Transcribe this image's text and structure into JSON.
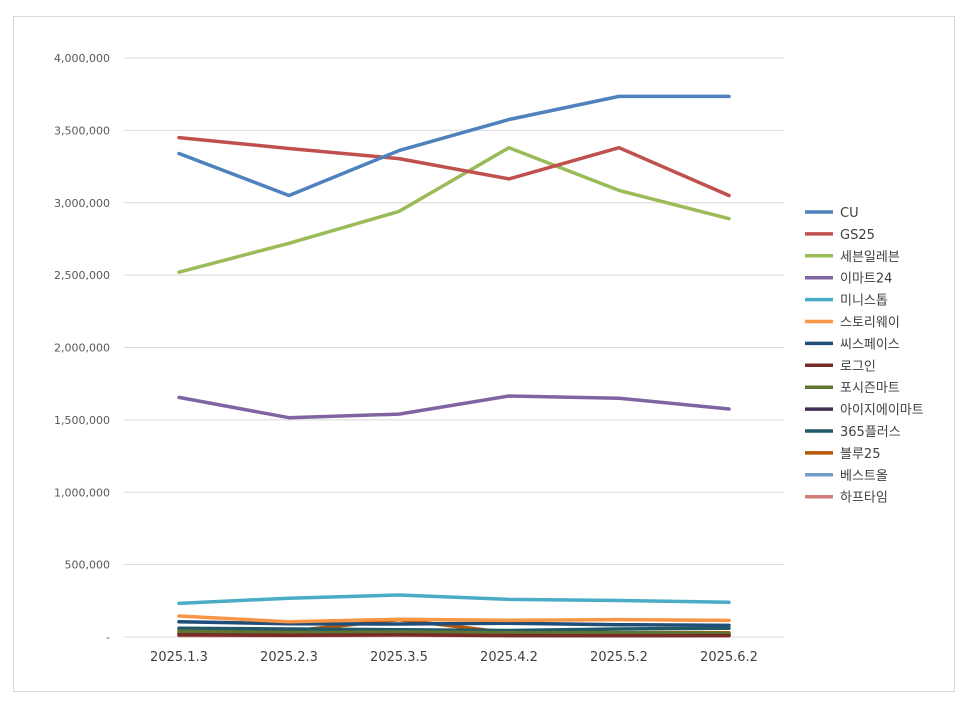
{
  "chart_data": {
    "type": "line",
    "title": "",
    "xlabel": "",
    "ylabel": "",
    "categories": [
      "2025.1.3",
      "2025.2.3",
      "2025.3.5",
      "2025.4.2",
      "2025.5.2",
      "2025.6.2"
    ],
    "ylim": [
      0,
      4000000
    ],
    "yticks": [
      {
        "value": 0,
        "label": "-"
      },
      {
        "value": 500000,
        "label": "500,000"
      },
      {
        "value": 1000000,
        "label": "1,000,000"
      },
      {
        "value": 1500000,
        "label": "1,500,000"
      },
      {
        "value": 2000000,
        "label": "2,000,000"
      },
      {
        "value": 2500000,
        "label": "2,500,000"
      },
      {
        "value": 3000000,
        "label": "3,000,000"
      },
      {
        "value": 3500000,
        "label": "3,500,000"
      },
      {
        "value": 4000000,
        "label": "4,000,000"
      }
    ],
    "grid": true,
    "legend_position": "right",
    "series": [
      {
        "name": "CU",
        "color": "#4f81bd",
        "values": [
          3340000,
          3050000,
          3360000,
          3575000,
          3735000,
          3735000
        ]
      },
      {
        "name": "GS25",
        "color": "#c0504d",
        "values": [
          3450000,
          3375000,
          3305000,
          3165000,
          3380000,
          3050000
        ]
      },
      {
        "name": "세븐일레븐",
        "color": "#9bbb59",
        "values": [
          2520000,
          2720000,
          2940000,
          3380000,
          3085000,
          2890000
        ]
      },
      {
        "name": "이마트24",
        "color": "#8064a2",
        "values": [
          1655000,
          1515000,
          1540000,
          1665000,
          1650000,
          1575000
        ]
      },
      {
        "name": "미니스톱",
        "color": "#4bacc6",
        "values": [
          232000,
          268000,
          290000,
          260000,
          252000,
          240000
        ]
      },
      {
        "name": "스토리웨이",
        "color": "#f79646",
        "values": [
          145000,
          105000,
          122000,
          115000,
          120000,
          115000
        ]
      },
      {
        "name": "씨스페이스",
        "color": "#1f4e79",
        "values": [
          105000,
          92000,
          90000,
          95000,
          85000,
          80000
        ]
      },
      {
        "name": "로그인",
        "color": "#772c2a",
        "values": [
          15000,
          12000,
          15000,
          10000,
          8000,
          10000
        ]
      },
      {
        "name": "포시즌마트",
        "color": "#5f7530",
        "values": [
          40000,
          30000,
          35000,
          30000,
          30000,
          25000
        ]
      },
      {
        "name": "아이지에이마트",
        "color": "#403152",
        "values": [
          25000,
          20000,
          20000,
          18000,
          15000,
          20000
        ]
      },
      {
        "name": "365플러스",
        "color": "#215967",
        "values": [
          60000,
          55000,
          50000,
          45000,
          55000,
          60000
        ]
      },
      {
        "name": "블루25",
        "color": "#b65708",
        "values": [
          50000,
          40000,
          120000,
          30000,
          30000,
          30000
        ]
      },
      {
        "name": "베스트올",
        "color": "#729aca",
        "values": [
          20000,
          18000,
          22000,
          18000,
          20000,
          15000
        ]
      },
      {
        "name": "하프타임",
        "color": "#d07d7a",
        "values": [
          10000,
          10000,
          12000,
          10000,
          12000,
          10000
        ]
      }
    ]
  }
}
